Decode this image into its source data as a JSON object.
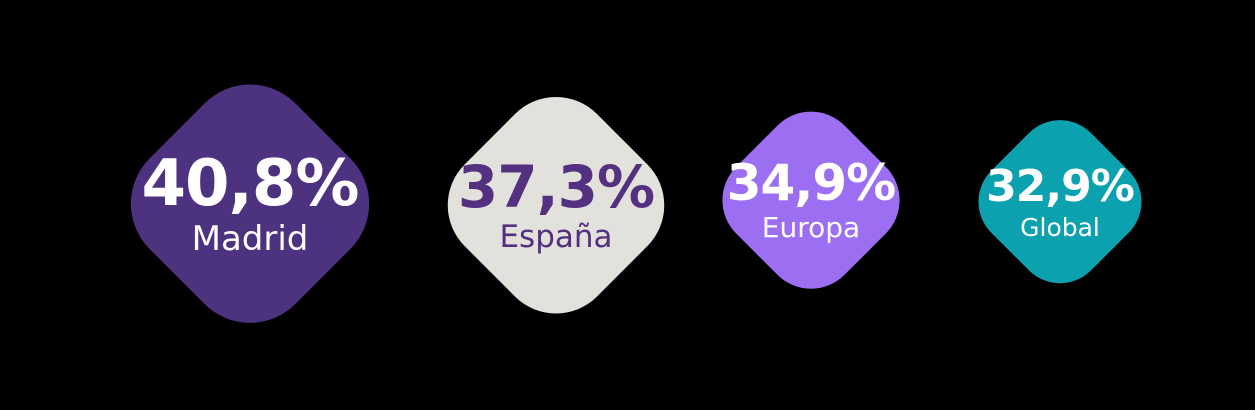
{
  "background": "#000000",
  "chart_data": {
    "type": "bar",
    "variant": "proportional rounded-diamond symbol chart (infographic)",
    "categories": [
      "Madrid",
      "España",
      "Europa",
      "Global"
    ],
    "values": [
      40.8,
      37.3,
      34.9,
      32.9
    ],
    "value_labels": [
      "40,8%",
      "37,3%",
      "34,9%",
      "32,9%"
    ],
    "unit": "%",
    "legend": false,
    "grid": false,
    "layout": "symbols ordered left to right by descending value; symbol size proportional to value",
    "colors": {
      "madrid_fill": "#4d3280",
      "espana_fill": "#e3e1dc",
      "europa_fill": "#9c6ff2",
      "global_fill": "#0ba1af",
      "light_text": "#ffffff",
      "dark_purple_text": "#533180"
    }
  },
  "items": [
    {
      "value": "40,8%",
      "label": "Madrid",
      "fill": "#4d3280",
      "text_color": "#ffffff"
    },
    {
      "value": "37,3%",
      "label": "España",
      "fill": "#e3e1dc",
      "text_color": "#533180"
    },
    {
      "value": "34,9%",
      "label": "Europa",
      "fill": "#9c6ff2",
      "text_color": "#ffffff"
    },
    {
      "value": "32,9%",
      "label": "Global",
      "fill": "#0ba1af",
      "text_color": "#ffffff"
    }
  ]
}
